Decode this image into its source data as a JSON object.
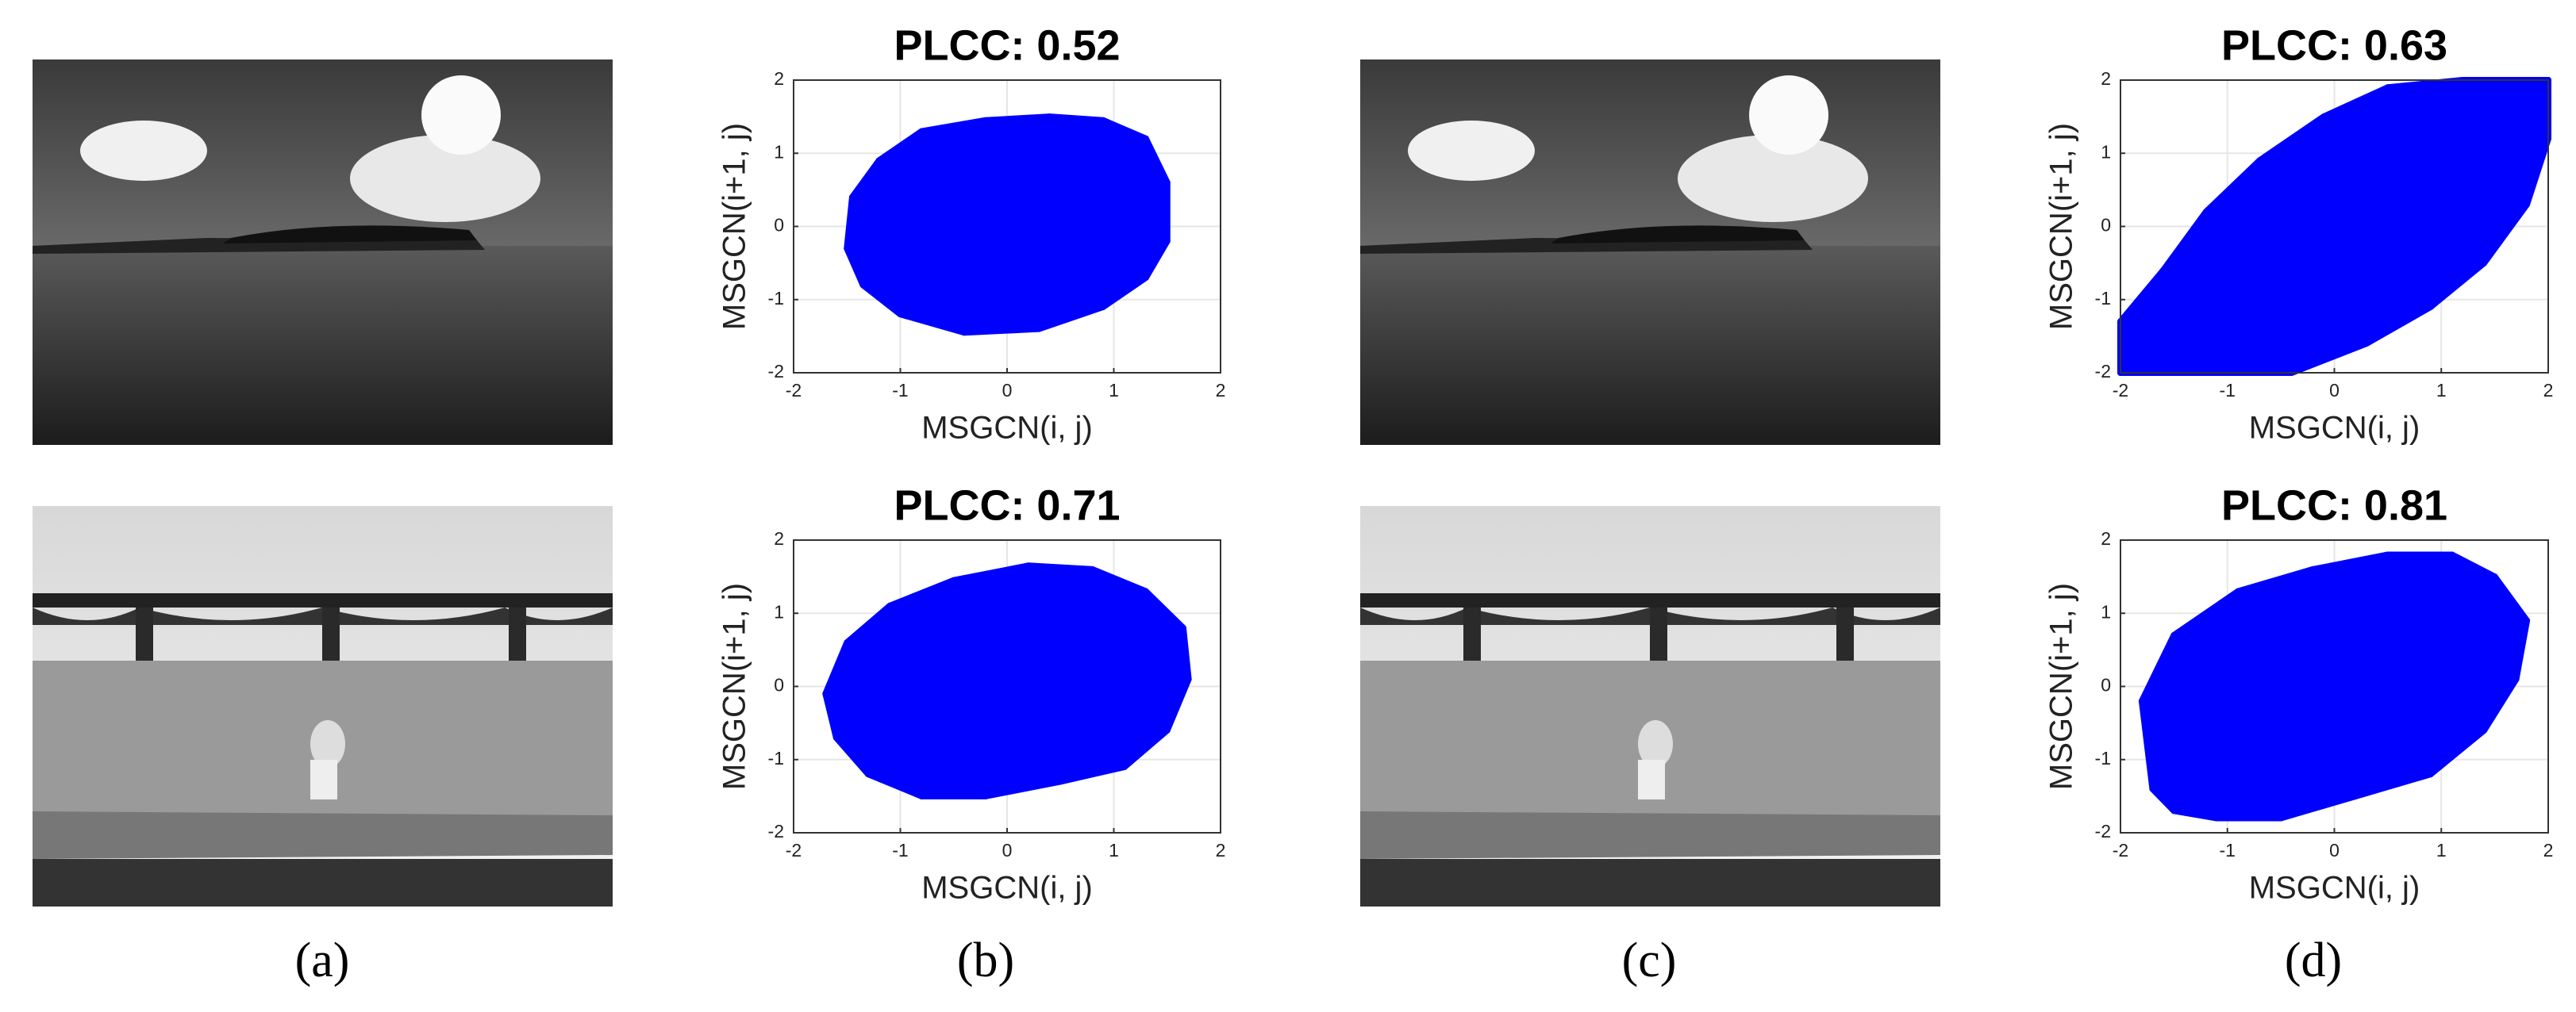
{
  "chart_data": [
    {
      "type": "scatter",
      "title": "PLCC: 0.52",
      "x_label": "MSGCN(i, j)",
      "y_label": "MSGCN(i+1, j)",
      "color": "#0000ff",
      "x": [
        -1.5,
        -1.45,
        -1.2,
        -0.8,
        -0.2,
        0.4,
        0.9,
        1.3,
        1.5,
        1.5,
        1.3,
        0.9,
        0.3,
        -0.4,
        -1.0,
        -1.35
      ],
      "y": [
        -0.3,
        0.4,
        0.9,
        1.3,
        1.45,
        1.5,
        1.45,
        1.2,
        0.6,
        -0.2,
        -0.7,
        -1.1,
        -1.4,
        -1.45,
        -1.2,
        -0.8
      ],
      "xlim": [
        -2,
        2
      ],
      "ylim": [
        -2,
        2
      ],
      "xticks": [
        -2,
        -1,
        0,
        1,
        2
      ],
      "yticks": [
        -2,
        -1,
        0,
        1,
        2
      ],
      "grid": true
    },
    {
      "type": "scatter",
      "title": "PLCC: 0.71",
      "x_label": "MSGCN(i, j)",
      "y_label": "MSGCN(i+1, j)",
      "color": "#0000ff",
      "x": [
        -1.7,
        -1.5,
        -1.1,
        -0.5,
        0.2,
        0.8,
        1.3,
        1.65,
        1.7,
        1.5,
        1.1,
        0.5,
        -0.2,
        -0.8,
        -1.3,
        -1.6
      ],
      "y": [
        -0.1,
        0.6,
        1.1,
        1.45,
        1.65,
        1.6,
        1.3,
        0.8,
        0.1,
        -0.6,
        -1.1,
        -1.3,
        -1.5,
        -1.5,
        -1.2,
        -0.7
      ],
      "xlim": [
        -2,
        2
      ],
      "ylim": [
        -2,
        2
      ],
      "xticks": [
        -2,
        -1,
        0,
        1,
        2
      ],
      "yticks": [
        -2,
        -1,
        0,
        1,
        2
      ],
      "grid": true
    },
    {
      "type": "scatter",
      "title": "PLCC: 0.63",
      "x_label": "MSGCN(i, j)",
      "y_label": "MSGCN(i+1, j)",
      "color": "#0000ff",
      "x": [
        -2,
        -2,
        -1.6,
        -1.2,
        -0.7,
        -0.1,
        0.5,
        1.2,
        2,
        2,
        1.8,
        1.4,
        0.9,
        0.3,
        -0.4,
        -1.2
      ],
      "y": [
        -2,
        -1.3,
        -0.6,
        0.2,
        0.9,
        1.5,
        1.9,
        2,
        2,
        1.2,
        0.3,
        -0.5,
        -1.1,
        -1.6,
        -2,
        -2
      ],
      "xlim": [
        -2,
        2
      ],
      "ylim": [
        -2,
        2
      ],
      "xticks": [
        -2,
        -1,
        0,
        1,
        2
      ],
      "yticks": [
        -2,
        -1,
        0,
        1,
        2
      ],
      "grid": true
    },
    {
      "type": "scatter",
      "title": "PLCC: 0.81",
      "x_label": "MSGCN(i, j)",
      "y_label": "MSGCN(i+1, j)",
      "color": "#0000ff",
      "x": [
        -1.7,
        -1.8,
        -1.5,
        -0.9,
        -0.2,
        0.5,
        1.1,
        1.5,
        1.8,
        1.7,
        1.4,
        0.9,
        0.2,
        -0.5,
        -1.1,
        -1.5
      ],
      "y": [
        -1.4,
        -0.2,
        0.7,
        1.3,
        1.6,
        1.8,
        1.8,
        1.5,
        0.9,
        0.1,
        -0.6,
        -1.2,
        -1.5,
        -1.8,
        -1.8,
        -1.7
      ],
      "xlim": [
        -2,
        2
      ],
      "ylim": [
        -2,
        2
      ],
      "xticks": [
        -2,
        -1,
        0,
        1,
        2
      ],
      "yticks": [
        -2,
        -1,
        0,
        1,
        2
      ],
      "grid": true
    }
  ],
  "captions": [
    "(a)",
    "(b)",
    "(c)",
    "(d)"
  ]
}
